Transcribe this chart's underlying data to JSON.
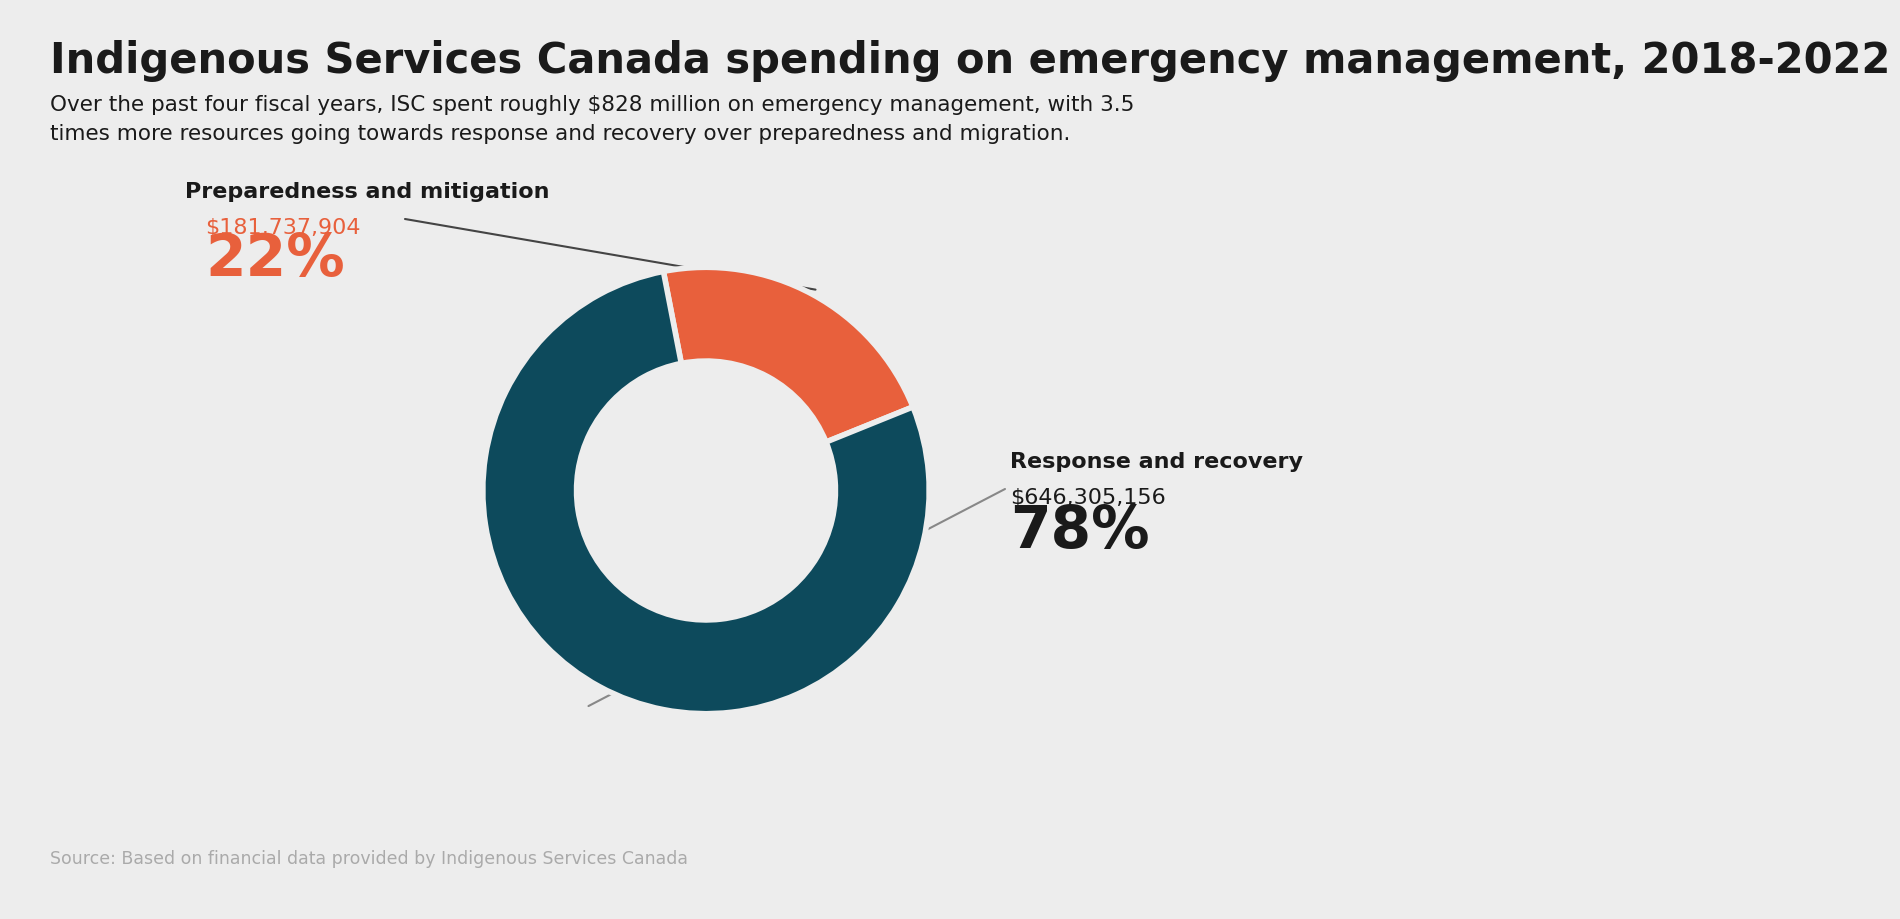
{
  "title": "Indigenous Services Canada spending on emergency management, 2018-2022",
  "subtitle": "Over the past four fiscal years, ISC spent roughly $828 million on emergency management, with 3.5\ntimes more resources going towards response and recovery over preparedness and migration.",
  "source": "Source: Based on financial data provided by Indigenous Services Canada",
  "slices": [
    {
      "label": "Preparedness and mitigation",
      "value": 181737904,
      "pct": 22,
      "color": "#E8603C",
      "display_value": "$181,737,904",
      "display_pct": "22%"
    },
    {
      "label": "Response and recovery",
      "value": 646305156,
      "pct": 78,
      "color": "#0D4A5C",
      "display_value": "$646,305,156",
      "display_pct": "78%"
    }
  ],
  "background_color": "#EDEDED",
  "title_color": "#1A1A1A",
  "subtitle_color": "#1A1A1A",
  "source_color": "#AAAAAA",
  "label_color_preparedness": "#E8603C",
  "label_color_recovery": "#1A1A1A",
  "startangle": 101,
  "donut_width": 0.42
}
